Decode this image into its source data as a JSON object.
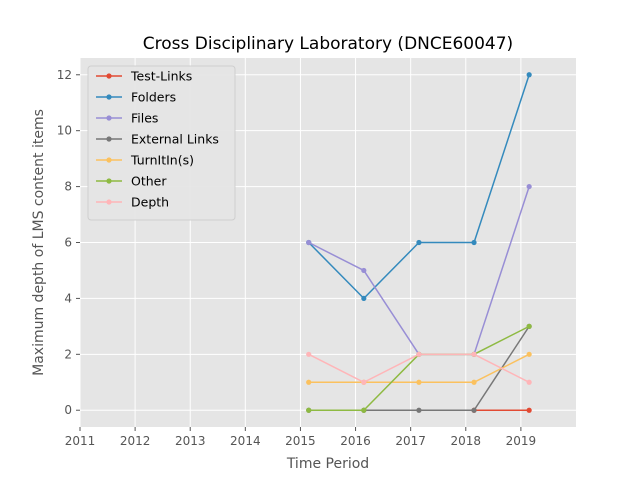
{
  "chart_data": {
    "type": "line",
    "title": "Cross Disciplinary Laboratory (DNCE60047)",
    "xlabel": "Time Period",
    "ylabel": "Maximum depth of LMS content items",
    "xlim": [
      2011,
      2020
    ],
    "ylim": [
      -0.6,
      12.6
    ],
    "xticks": [
      "2011",
      "2012",
      "2013",
      "2014",
      "2015",
      "2016",
      "2017",
      "2018",
      "2019"
    ],
    "yticks": [
      "0",
      "2",
      "4",
      "6",
      "8",
      "10",
      "12"
    ],
    "x": [
      2015.15,
      2016.15,
      2017.15,
      2018.15,
      2019.15
    ],
    "grid": true,
    "legend_position": "top-left",
    "series": [
      {
        "name": "Test-Links",
        "color": "#e24a33",
        "values": [
          null,
          null,
          null,
          0,
          0
        ]
      },
      {
        "name": "Folders",
        "color": "#348abd",
        "values": [
          6,
          4,
          6,
          6,
          12
        ]
      },
      {
        "name": "Files",
        "color": "#988ed5",
        "values": [
          6,
          5,
          2,
          2,
          8
        ]
      },
      {
        "name": "External Links",
        "color": "#777777",
        "values": [
          0,
          0,
          0,
          0,
          3
        ]
      },
      {
        "name": "TurnItIn(s)",
        "color": "#fbc15e",
        "values": [
          1,
          1,
          1,
          1,
          2
        ]
      },
      {
        "name": "Other",
        "color": "#8eba42",
        "values": [
          0,
          0,
          2,
          2,
          3
        ]
      },
      {
        "name": "Depth",
        "color": "#ffb5b8",
        "values": [
          2,
          1,
          2,
          2,
          1
        ]
      }
    ]
  }
}
